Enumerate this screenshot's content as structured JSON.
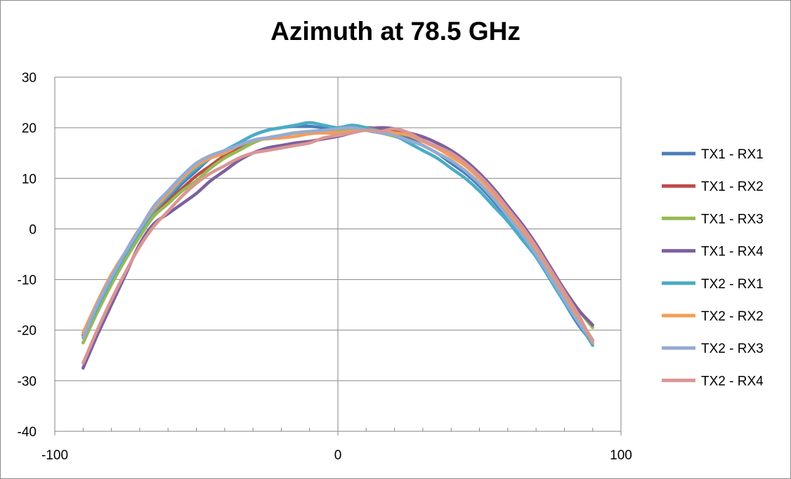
{
  "chart_data": {
    "type": "line",
    "title": "Azimuth at 78.5 GHz",
    "xlabel": "",
    "ylabel": "",
    "xlim": [
      -100,
      100
    ],
    "ylim": [
      -40,
      30
    ],
    "x_ticks": [
      -100,
      0,
      100
    ],
    "y_ticks": [
      30,
      20,
      10,
      0,
      -10,
      -20,
      -30,
      -40
    ],
    "grid": "horizontal major gridlines",
    "legend_position": "right",
    "series": [
      {
        "name": "TX1 - RX1",
        "color": "#4a7ebb",
        "x": [
          -90,
          -85,
          -80,
          -75,
          -70,
          -65,
          -60,
          -55,
          -50,
          -45,
          -40,
          -35,
          -30,
          -25,
          -20,
          -15,
          -10,
          -5,
          0,
          5,
          10,
          15,
          20,
          25,
          30,
          35,
          40,
          45,
          50,
          55,
          60,
          65,
          70,
          75,
          80,
          85,
          90
        ],
        "values": [
          -21.5,
          -15.5,
          -10,
          -5,
          0,
          3.5,
          6,
          9,
          11.5,
          14,
          15.5,
          17,
          18.5,
          19.5,
          20,
          20.3,
          20.3,
          20,
          20,
          20.3,
          19.5,
          19,
          18.8,
          18,
          16.5,
          15,
          13,
          11,
          8.5,
          5.5,
          2,
          -2,
          -5.5,
          -10,
          -14.5,
          -19,
          -22.5
        ]
      },
      {
        "name": "TX1 - RX2",
        "color": "#be4b48",
        "x": [
          -90,
          -85,
          -80,
          -75,
          -70,
          -65,
          -60,
          -55,
          -50,
          -45,
          -40,
          -35,
          -30,
          -25,
          -20,
          -15,
          -10,
          -5,
          0,
          5,
          10,
          15,
          20,
          25,
          30,
          35,
          40,
          45,
          50,
          55,
          60,
          65,
          70,
          75,
          80,
          85,
          90
        ],
        "values": [
          -21,
          -15,
          -9.5,
          -4.5,
          0,
          3,
          5.5,
          8,
          10.5,
          12.5,
          14.5,
          16,
          17.5,
          18,
          18.5,
          19,
          19,
          19,
          19,
          19.5,
          20,
          19.8,
          19.5,
          18.5,
          17.5,
          16,
          14.5,
          12.5,
          10,
          7,
          3.5,
          0,
          -4,
          -8.5,
          -13,
          -17.5,
          -22
        ]
      },
      {
        "name": "TX1 - RX3",
        "color": "#98b954",
        "x": [
          -90,
          -85,
          -80,
          -75,
          -70,
          -65,
          -60,
          -55,
          -50,
          -45,
          -40,
          -35,
          -30,
          -25,
          -20,
          -15,
          -10,
          -5,
          0,
          5,
          10,
          15,
          20,
          25,
          30,
          35,
          40,
          45,
          50,
          55,
          60,
          65,
          70,
          75,
          80,
          85,
          90
        ],
        "values": [
          -22.5,
          -16.5,
          -11,
          -6,
          -1.5,
          2.5,
          5,
          7.5,
          9.5,
          12,
          14,
          15.5,
          17,
          18,
          18.5,
          19,
          19.2,
          19,
          19.3,
          19.8,
          19.5,
          19,
          18.3,
          17.5,
          16.5,
          15,
          13.5,
          11.5,
          9,
          6,
          3,
          -0.5,
          -4,
          -8,
          -12,
          -16,
          -19.5
        ]
      },
      {
        "name": "TX1 - RX4",
        "color": "#7d60a0",
        "x": [
          -90,
          -85,
          -80,
          -75,
          -70,
          -65,
          -60,
          -55,
          -50,
          -45,
          -40,
          -35,
          -30,
          -25,
          -20,
          -15,
          -10,
          -5,
          0,
          5,
          10,
          15,
          20,
          25,
          30,
          35,
          40,
          45,
          50,
          55,
          60,
          65,
          70,
          75,
          80,
          85,
          90
        ],
        "values": [
          -27.5,
          -21,
          -15,
          -9,
          -3,
          1,
          3,
          5,
          7,
          9.5,
          11.5,
          13.5,
          15,
          16,
          16.5,
          17,
          17.3,
          17.8,
          18.3,
          19,
          19.7,
          20,
          19.8,
          19,
          18.2,
          17,
          15.5,
          13.5,
          11,
          8,
          4.5,
          1,
          -3,
          -7.5,
          -12,
          -16,
          -19
        ]
      },
      {
        "name": "TX2 - RX1",
        "color": "#4bacc6",
        "x": [
          -90,
          -85,
          -80,
          -75,
          -70,
          -65,
          -60,
          -55,
          -50,
          -45,
          -40,
          -35,
          -30,
          -25,
          -20,
          -15,
          -10,
          -5,
          0,
          5,
          10,
          15,
          20,
          25,
          30,
          35,
          40,
          45,
          50,
          55,
          60,
          65,
          70,
          75,
          80,
          85,
          90
        ],
        "values": [
          -21.5,
          -15.5,
          -10,
          -5,
          -0.5,
          3.5,
          6.5,
          9.5,
          12,
          14,
          15.5,
          17,
          18.5,
          19.5,
          20,
          20.5,
          21,
          20.5,
          20,
          20.5,
          20,
          19.3,
          18.5,
          17,
          15.5,
          14,
          12,
          10,
          7.5,
          4.5,
          1.5,
          -2,
          -5.5,
          -10,
          -14.5,
          -18.5,
          -23
        ]
      },
      {
        "name": "TX2 - RX2",
        "color": "#f59d56",
        "x": [
          -90,
          -85,
          -80,
          -75,
          -70,
          -65,
          -60,
          -55,
          -50,
          -45,
          -40,
          -35,
          -30,
          -25,
          -20,
          -15,
          -10,
          -5,
          0,
          5,
          10,
          15,
          20,
          25,
          30,
          35,
          40,
          45,
          50,
          55,
          60,
          65,
          70,
          75,
          80,
          85,
          90
        ],
        "values": [
          -20.5,
          -14.5,
          -9,
          -4.5,
          0,
          4,
          7,
          10,
          12.5,
          14,
          15,
          16.5,
          17.5,
          17.8,
          18,
          18.3,
          18.8,
          19,
          19,
          19.3,
          19.5,
          19.3,
          19,
          18.5,
          17.3,
          16,
          14.3,
          12.5,
          10,
          7,
          3.5,
          0,
          -4,
          -8.5,
          -13,
          -17.5,
          -22
        ]
      },
      {
        "name": "TX2 - RX3",
        "color": "#95abd3",
        "x": [
          -90,
          -85,
          -80,
          -75,
          -70,
          -65,
          -60,
          -55,
          -50,
          -45,
          -40,
          -35,
          -30,
          -25,
          -20,
          -15,
          -10,
          -5,
          0,
          5,
          10,
          15,
          20,
          25,
          30,
          35,
          40,
          45,
          50,
          55,
          60,
          65,
          70,
          75,
          80,
          85,
          90
        ],
        "values": [
          -21.5,
          -15,
          -9.5,
          -4.5,
          0,
          4.5,
          7.5,
          10.5,
          13,
          14.5,
          15.5,
          16.5,
          17.5,
          18,
          18.5,
          19,
          19.3,
          19.5,
          19.8,
          20,
          19.5,
          19,
          18.5,
          17.5,
          16.5,
          15,
          13.5,
          11.5,
          9,
          6,
          2.5,
          -1,
          -5,
          -9.5,
          -14,
          -18.5,
          -22
        ]
      },
      {
        "name": "TX2 - RX4",
        "color": "#d99694",
        "x": [
          -90,
          -85,
          -80,
          -75,
          -70,
          -65,
          -60,
          -55,
          -50,
          -45,
          -40,
          -35,
          -30,
          -25,
          -20,
          -15,
          -10,
          -5,
          0,
          5,
          10,
          15,
          20,
          25,
          30,
          35,
          40,
          45,
          50,
          55,
          60,
          65,
          70,
          75,
          80,
          85,
          90
        ],
        "values": [
          -26.5,
          -20,
          -14,
          -8.5,
          -3.5,
          0.5,
          3.5,
          6.5,
          9,
          11,
          12.5,
          14,
          15,
          15.5,
          16,
          16.5,
          17,
          18,
          18.5,
          19,
          19.5,
          19.3,
          19.8,
          19,
          17.5,
          16.3,
          15,
          13,
          10.5,
          7.5,
          4,
          0.5,
          -3.5,
          -8,
          -12.5,
          -17,
          -22.5
        ]
      }
    ]
  }
}
